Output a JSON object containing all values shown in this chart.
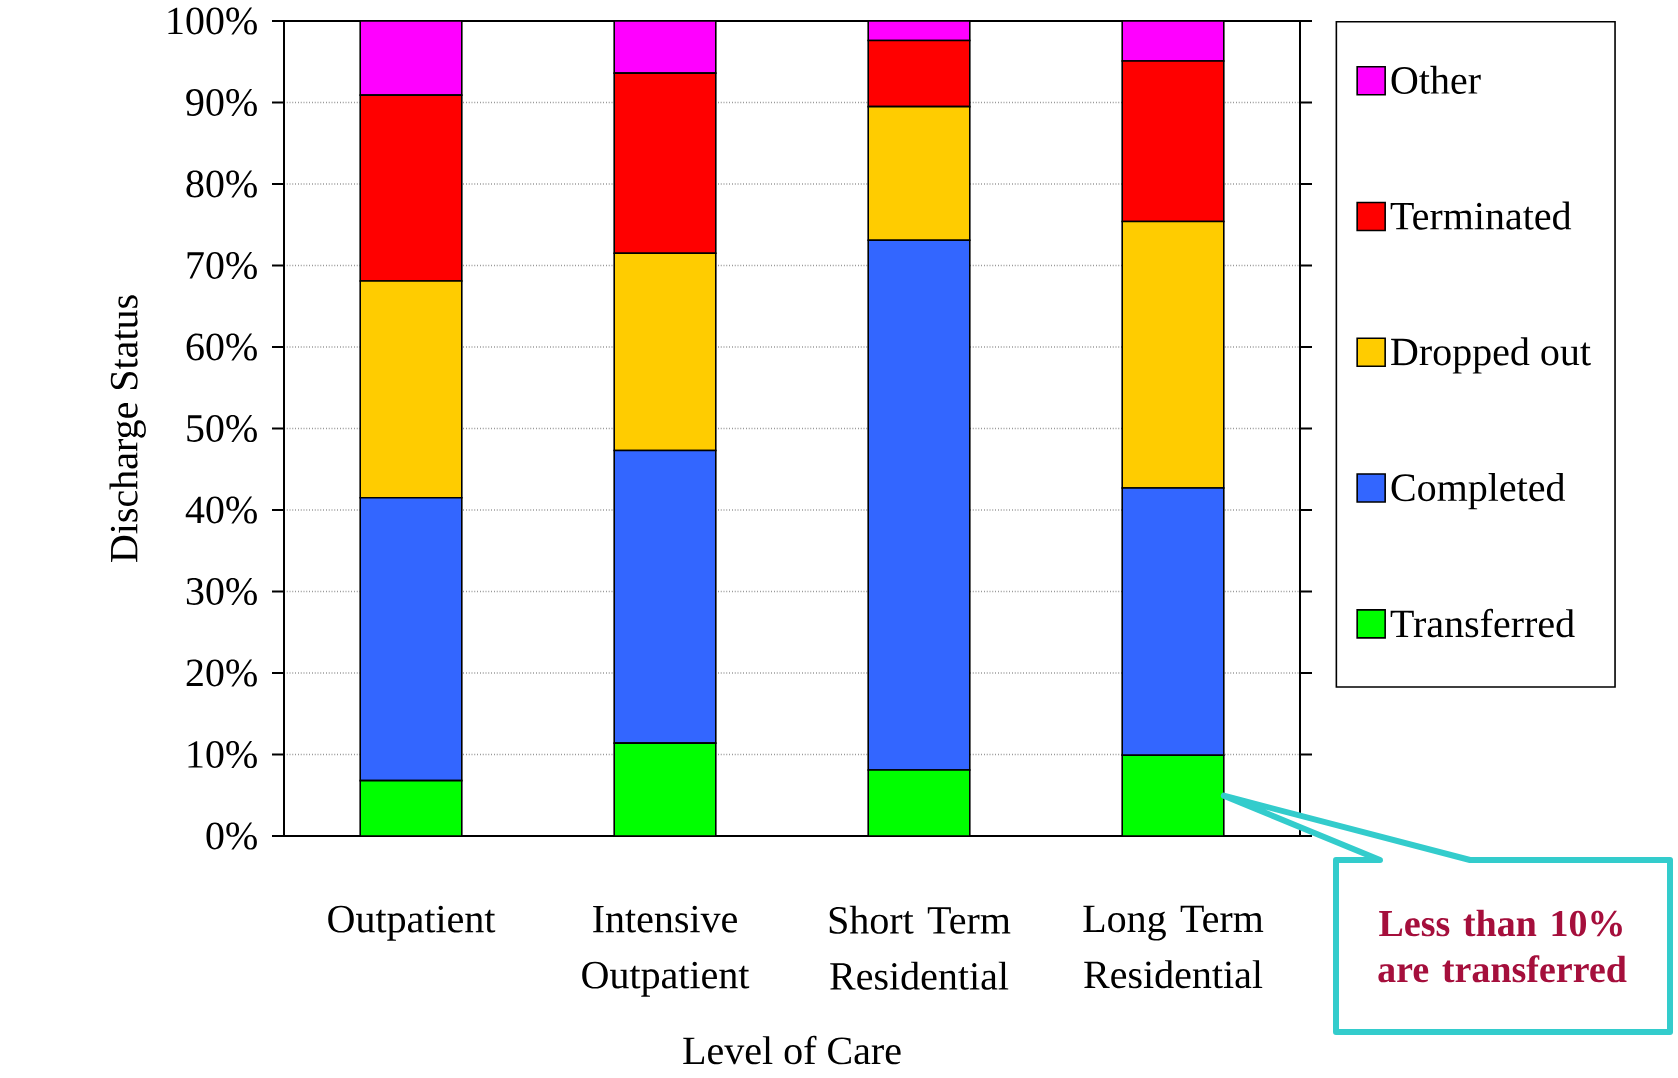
{
  "chart_data": {
    "type": "bar",
    "stacked": true,
    "xlabel": "Level of Care",
    "ylabel": "Discharge Status",
    "categories": [
      "Outpatient",
      "Intensive Outpatient",
      "Short Term Residential",
      "Long Term Residential"
    ],
    "series": [
      {
        "name": "Transferred",
        "color": "#00ff00",
        "values": [
          6.8,
          11.4,
          8.1,
          9.9
        ]
      },
      {
        "name": "Completed",
        "color": "#3366ff",
        "values": [
          34.7,
          35.9,
          65.0,
          32.8
        ]
      },
      {
        "name": "Dropped out",
        "color": "#ffcc00",
        "values": [
          26.6,
          24.2,
          16.4,
          32.7
        ]
      },
      {
        "name": "Terminated",
        "color": "#ff0000",
        "values": [
          22.8,
          22.1,
          8.1,
          19.7
        ]
      },
      {
        "name": "Other",
        "color": "#ff00ff",
        "values": [
          9.1,
          6.4,
          2.4,
          4.9
        ]
      }
    ],
    "ylim": [
      0,
      100
    ],
    "yticks": [
      {
        "value": 0,
        "label": "0%"
      },
      {
        "value": 10,
        "label": "10%"
      },
      {
        "value": 20,
        "label": "20%"
      },
      {
        "value": 30,
        "label": "30%"
      },
      {
        "value": 40,
        "label": "40%"
      },
      {
        "value": 50,
        "label": "50%"
      },
      {
        "value": 60,
        "label": "60%"
      },
      {
        "value": 70,
        "label": "70%"
      },
      {
        "value": 80,
        "label": "80%"
      },
      {
        "value": 90,
        "label": "90%"
      },
      {
        "value": 100,
        "label": "100%"
      }
    ],
    "grid": "y",
    "legend": "right",
    "annotations": [
      "Less than 10% are transferred"
    ]
  }
}
